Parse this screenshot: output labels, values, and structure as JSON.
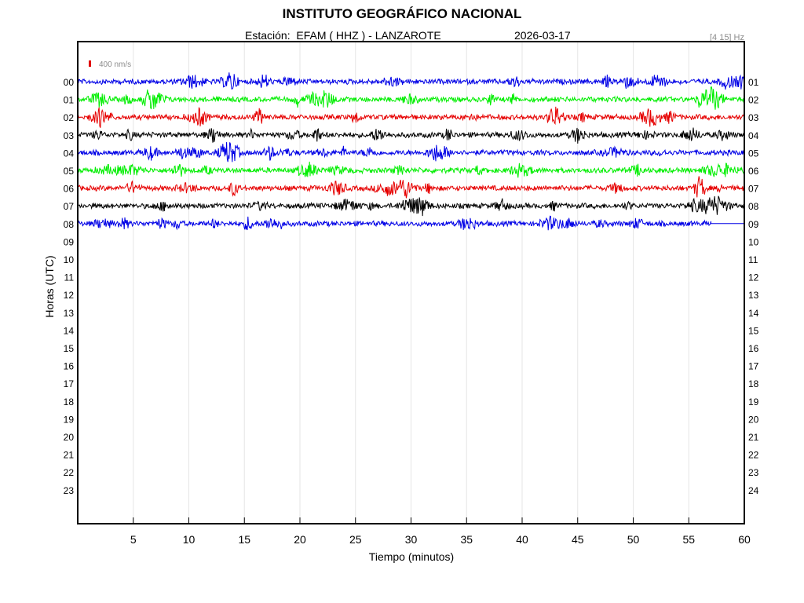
{
  "header": {
    "title": "INSTITUTO GEOGRÁFICO NACIONAL",
    "station_label": "Estación:  EFAM ( HHZ ) - LANZAROTE",
    "date": "2026-03-17",
    "band": "[4 15] Hz"
  },
  "chart_data": {
    "type": "line",
    "title": "INSTITUTO GEOGRÁFICO NACIONAL",
    "subtitle": "Estación:  EFAM ( HHZ ) - LANZAROTE",
    "xlabel": "Tiempo (minutos)",
    "ylabel": "Horas (UTC)",
    "xlim": [
      0,
      60
    ],
    "xticks": [
      "5",
      "10",
      "15",
      "20",
      "25",
      "30",
      "35",
      "40",
      "45",
      "50",
      "55",
      "60"
    ],
    "left_ticks": [
      "00",
      "01",
      "02",
      "03",
      "04",
      "05",
      "06",
      "07",
      "08",
      "09",
      "10",
      "11",
      "12",
      "13",
      "14",
      "15",
      "16",
      "17",
      "18",
      "19",
      "20",
      "21",
      "22",
      "23"
    ],
    "right_ticks": [
      "01",
      "02",
      "03",
      "04",
      "05",
      "06",
      "07",
      "08",
      "09",
      "10",
      "11",
      "12",
      "13",
      "14",
      "15",
      "16",
      "17",
      "18",
      "19",
      "20",
      "21",
      "22",
      "23",
      "24"
    ],
    "scale_label": "400 nm/s",
    "scale_color": "#e00000",
    "grid": true,
    "series": [
      {
        "hour": 0,
        "color": "#0000e6",
        "end_minute": 60
      },
      {
        "hour": 1,
        "color": "#00ee00",
        "end_minute": 60
      },
      {
        "hour": 2,
        "color": "#e60000",
        "end_minute": 60
      },
      {
        "hour": 3,
        "color": "#000000",
        "end_minute": 60
      },
      {
        "hour": 4,
        "color": "#0000e6",
        "end_minute": 60
      },
      {
        "hour": 5,
        "color": "#00ee00",
        "end_minute": 60
      },
      {
        "hour": 6,
        "color": "#e60000",
        "end_minute": 60
      },
      {
        "hour": 7,
        "color": "#000000",
        "end_minute": 60
      },
      {
        "hour": 8,
        "color": "#0000e6",
        "end_minute": 57
      }
    ]
  }
}
